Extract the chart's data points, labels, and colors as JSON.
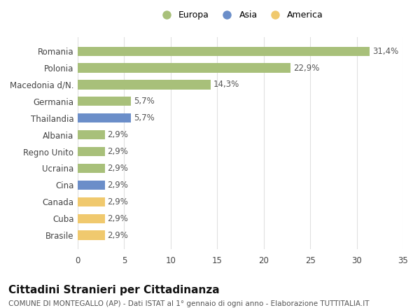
{
  "categories": [
    "Brasile",
    "Cuba",
    "Canada",
    "Cina",
    "Ucraina",
    "Regno Unito",
    "Albania",
    "Thailandia",
    "Germania",
    "Macedonia d/N.",
    "Polonia",
    "Romania"
  ],
  "values": [
    2.9,
    2.9,
    2.9,
    2.9,
    2.9,
    2.9,
    2.9,
    5.7,
    5.7,
    14.3,
    22.9,
    31.4
  ],
  "colors": [
    "#f0c96e",
    "#f0c96e",
    "#f0c96e",
    "#6b8ec9",
    "#a8c07a",
    "#a8c07a",
    "#a8c07a",
    "#6b8ec9",
    "#a8c07a",
    "#a8c07a",
    "#a8c07a",
    "#a8c07a"
  ],
  "labels": [
    "2,9%",
    "2,9%",
    "2,9%",
    "2,9%",
    "2,9%",
    "2,9%",
    "2,9%",
    "5,7%",
    "5,7%",
    "14,3%",
    "22,9%",
    "31,4%"
  ],
  "legend_labels": [
    "Europa",
    "Asia",
    "America"
  ],
  "legend_colors": [
    "#a8c07a",
    "#6b8ec9",
    "#f0c96e"
  ],
  "title": "Cittadini Stranieri per Cittadinanza",
  "subtitle": "COMUNE DI MONTEGALLO (AP) - Dati ISTAT al 1° gennaio di ogni anno - Elaborazione TUTTITALIA.IT",
  "xlim": [
    0,
    35
  ],
  "xticks": [
    0,
    5,
    10,
    15,
    20,
    25,
    30,
    35
  ],
  "background_color": "#ffffff",
  "grid_color": "#e0e0e0",
  "bar_height": 0.55,
  "label_fontsize": 8.5,
  "tick_fontsize": 8.5,
  "title_fontsize": 11,
  "subtitle_fontsize": 7.5,
  "legend_fontsize": 9
}
